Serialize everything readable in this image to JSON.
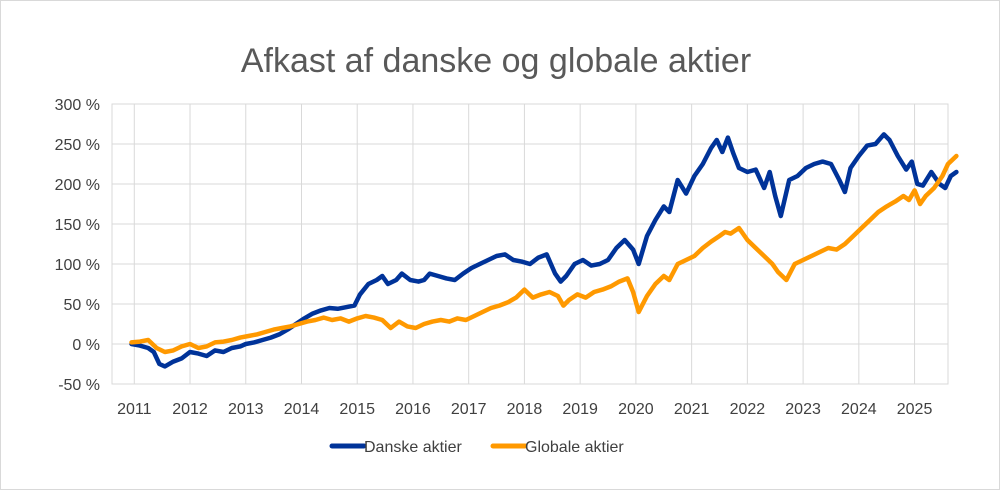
{
  "chart_data": {
    "type": "line",
    "title": "Afkast af danske og globale aktier",
    "xlabel": "",
    "ylabel": "",
    "x_ticks": [
      "2011",
      "2012",
      "2013",
      "2014",
      "2015",
      "2016",
      "2017",
      "2018",
      "2019",
      "2020",
      "2021",
      "2022",
      "2023",
      "2024",
      "2025"
    ],
    "y_ticks": [
      "300 %",
      "250 %",
      "200 %",
      "150 %",
      "100 %",
      "50 %",
      "0 %",
      "-50 %"
    ],
    "ylim": [
      -50,
      300
    ],
    "xlim": [
      2010.6,
      2025.6
    ],
    "grid": true,
    "legend_position": "bottom",
    "colors": {
      "danske": "#003399",
      "globale": "#ff9900",
      "grid": "#d9d9d9",
      "axis": "#bfbfbf"
    },
    "series": [
      {
        "name": "Danske aktier",
        "color": "#003399",
        "points": [
          [
            2010.95,
            0
          ],
          [
            2011.1,
            -2
          ],
          [
            2011.25,
            -5
          ],
          [
            2011.35,
            -10
          ],
          [
            2011.45,
            -25
          ],
          [
            2011.55,
            -28
          ],
          [
            2011.7,
            -22
          ],
          [
            2011.85,
            -18
          ],
          [
            2012.0,
            -10
          ],
          [
            2012.15,
            -12
          ],
          [
            2012.3,
            -15
          ],
          [
            2012.45,
            -8
          ],
          [
            2012.6,
            -10
          ],
          [
            2012.75,
            -5
          ],
          [
            2012.9,
            -3
          ],
          [
            2013.0,
            0
          ],
          [
            2013.15,
            2
          ],
          [
            2013.3,
            5
          ],
          [
            2013.45,
            8
          ],
          [
            2013.6,
            12
          ],
          [
            2013.75,
            18
          ],
          [
            2013.9,
            25
          ],
          [
            2014.05,
            32
          ],
          [
            2014.2,
            38
          ],
          [
            2014.35,
            42
          ],
          [
            2014.5,
            45
          ],
          [
            2014.65,
            44
          ],
          [
            2014.8,
            46
          ],
          [
            2014.95,
            48
          ],
          [
            2015.05,
            62
          ],
          [
            2015.2,
            75
          ],
          [
            2015.35,
            80
          ],
          [
            2015.45,
            85
          ],
          [
            2015.55,
            75
          ],
          [
            2015.7,
            80
          ],
          [
            2015.8,
            88
          ],
          [
            2015.95,
            80
          ],
          [
            2016.1,
            78
          ],
          [
            2016.2,
            80
          ],
          [
            2016.3,
            88
          ],
          [
            2016.45,
            85
          ],
          [
            2016.6,
            82
          ],
          [
            2016.75,
            80
          ],
          [
            2016.9,
            88
          ],
          [
            2017.05,
            95
          ],
          [
            2017.2,
            100
          ],
          [
            2017.35,
            105
          ],
          [
            2017.5,
            110
          ],
          [
            2017.65,
            112
          ],
          [
            2017.8,
            105
          ],
          [
            2017.95,
            103
          ],
          [
            2018.1,
            100
          ],
          [
            2018.25,
            108
          ],
          [
            2018.4,
            112
          ],
          [
            2018.55,
            88
          ],
          [
            2018.65,
            78
          ],
          [
            2018.75,
            85
          ],
          [
            2018.9,
            100
          ],
          [
            2019.05,
            105
          ],
          [
            2019.2,
            98
          ],
          [
            2019.35,
            100
          ],
          [
            2019.5,
            105
          ],
          [
            2019.65,
            120
          ],
          [
            2019.8,
            130
          ],
          [
            2019.95,
            118
          ],
          [
            2020.05,
            100
          ],
          [
            2020.2,
            135
          ],
          [
            2020.35,
            155
          ],
          [
            2020.5,
            172
          ],
          [
            2020.6,
            165
          ],
          [
            2020.75,
            205
          ],
          [
            2020.9,
            188
          ],
          [
            2021.05,
            210
          ],
          [
            2021.2,
            225
          ],
          [
            2021.35,
            245
          ],
          [
            2021.45,
            255
          ],
          [
            2021.55,
            240
          ],
          [
            2021.65,
            258
          ],
          [
            2021.75,
            238
          ],
          [
            2021.85,
            220
          ],
          [
            2022.0,
            215
          ],
          [
            2022.15,
            218
          ],
          [
            2022.3,
            195
          ],
          [
            2022.4,
            215
          ],
          [
            2022.5,
            185
          ],
          [
            2022.6,
            160
          ],
          [
            2022.75,
            205
          ],
          [
            2022.9,
            210
          ],
          [
            2023.05,
            220
          ],
          [
            2023.2,
            225
          ],
          [
            2023.35,
            228
          ],
          [
            2023.5,
            225
          ],
          [
            2023.65,
            205
          ],
          [
            2023.75,
            190
          ],
          [
            2023.85,
            220
          ],
          [
            2024.0,
            235
          ],
          [
            2024.15,
            248
          ],
          [
            2024.3,
            250
          ],
          [
            2024.45,
            262
          ],
          [
            2024.55,
            255
          ],
          [
            2024.7,
            235
          ],
          [
            2024.85,
            218
          ],
          [
            2024.95,
            228
          ],
          [
            2025.05,
            200
          ],
          [
            2025.15,
            198
          ],
          [
            2025.3,
            215
          ],
          [
            2025.45,
            200
          ],
          [
            2025.55,
            195
          ],
          [
            2025.65,
            210
          ],
          [
            2025.75,
            215
          ]
        ]
      },
      {
        "name": "Globale aktier",
        "color": "#ff9900",
        "points": [
          [
            2010.95,
            2
          ],
          [
            2011.1,
            3
          ],
          [
            2011.25,
            5
          ],
          [
            2011.4,
            -5
          ],
          [
            2011.55,
            -10
          ],
          [
            2011.7,
            -8
          ],
          [
            2011.85,
            -3
          ],
          [
            2012.0,
            0
          ],
          [
            2012.15,
            -5
          ],
          [
            2012.3,
            -3
          ],
          [
            2012.45,
            2
          ],
          [
            2012.6,
            3
          ],
          [
            2012.75,
            5
          ],
          [
            2012.9,
            8
          ],
          [
            2013.05,
            10
          ],
          [
            2013.2,
            12
          ],
          [
            2013.35,
            15
          ],
          [
            2013.5,
            18
          ],
          [
            2013.65,
            20
          ],
          [
            2013.8,
            22
          ],
          [
            2013.95,
            25
          ],
          [
            2014.1,
            28
          ],
          [
            2014.25,
            30
          ],
          [
            2014.4,
            33
          ],
          [
            2014.55,
            30
          ],
          [
            2014.7,
            32
          ],
          [
            2014.85,
            28
          ],
          [
            2015.0,
            32
          ],
          [
            2015.15,
            35
          ],
          [
            2015.3,
            33
          ],
          [
            2015.45,
            30
          ],
          [
            2015.6,
            20
          ],
          [
            2015.75,
            28
          ],
          [
            2015.9,
            22
          ],
          [
            2016.05,
            20
          ],
          [
            2016.2,
            25
          ],
          [
            2016.35,
            28
          ],
          [
            2016.5,
            30
          ],
          [
            2016.65,
            28
          ],
          [
            2016.8,
            32
          ],
          [
            2016.95,
            30
          ],
          [
            2017.1,
            35
          ],
          [
            2017.25,
            40
          ],
          [
            2017.4,
            45
          ],
          [
            2017.55,
            48
          ],
          [
            2017.7,
            52
          ],
          [
            2017.85,
            58
          ],
          [
            2018.0,
            68
          ],
          [
            2018.15,
            58
          ],
          [
            2018.3,
            62
          ],
          [
            2018.45,
            65
          ],
          [
            2018.6,
            60
          ],
          [
            2018.7,
            48
          ],
          [
            2018.8,
            55
          ],
          [
            2018.95,
            62
          ],
          [
            2019.1,
            58
          ],
          [
            2019.25,
            65
          ],
          [
            2019.4,
            68
          ],
          [
            2019.55,
            72
          ],
          [
            2019.7,
            78
          ],
          [
            2019.85,
            82
          ],
          [
            2019.95,
            65
          ],
          [
            2020.05,
            40
          ],
          [
            2020.2,
            60
          ],
          [
            2020.35,
            75
          ],
          [
            2020.5,
            85
          ],
          [
            2020.6,
            80
          ],
          [
            2020.75,
            100
          ],
          [
            2020.9,
            105
          ],
          [
            2021.05,
            110
          ],
          [
            2021.2,
            120
          ],
          [
            2021.35,
            128
          ],
          [
            2021.5,
            135
          ],
          [
            2021.6,
            140
          ],
          [
            2021.7,
            138
          ],
          [
            2021.85,
            145
          ],
          [
            2022.0,
            130
          ],
          [
            2022.15,
            120
          ],
          [
            2022.3,
            110
          ],
          [
            2022.45,
            100
          ],
          [
            2022.55,
            90
          ],
          [
            2022.7,
            80
          ],
          [
            2022.85,
            100
          ],
          [
            2023.0,
            105
          ],
          [
            2023.15,
            110
          ],
          [
            2023.3,
            115
          ],
          [
            2023.45,
            120
          ],
          [
            2023.6,
            118
          ],
          [
            2023.75,
            125
          ],
          [
            2023.9,
            135
          ],
          [
            2024.05,
            145
          ],
          [
            2024.2,
            155
          ],
          [
            2024.35,
            165
          ],
          [
            2024.5,
            172
          ],
          [
            2024.65,
            178
          ],
          [
            2024.8,
            185
          ],
          [
            2024.9,
            180
          ],
          [
            2025.0,
            192
          ],
          [
            2025.1,
            175
          ],
          [
            2025.2,
            185
          ],
          [
            2025.35,
            195
          ],
          [
            2025.5,
            210
          ],
          [
            2025.6,
            225
          ],
          [
            2025.75,
            235
          ]
        ]
      }
    ]
  }
}
